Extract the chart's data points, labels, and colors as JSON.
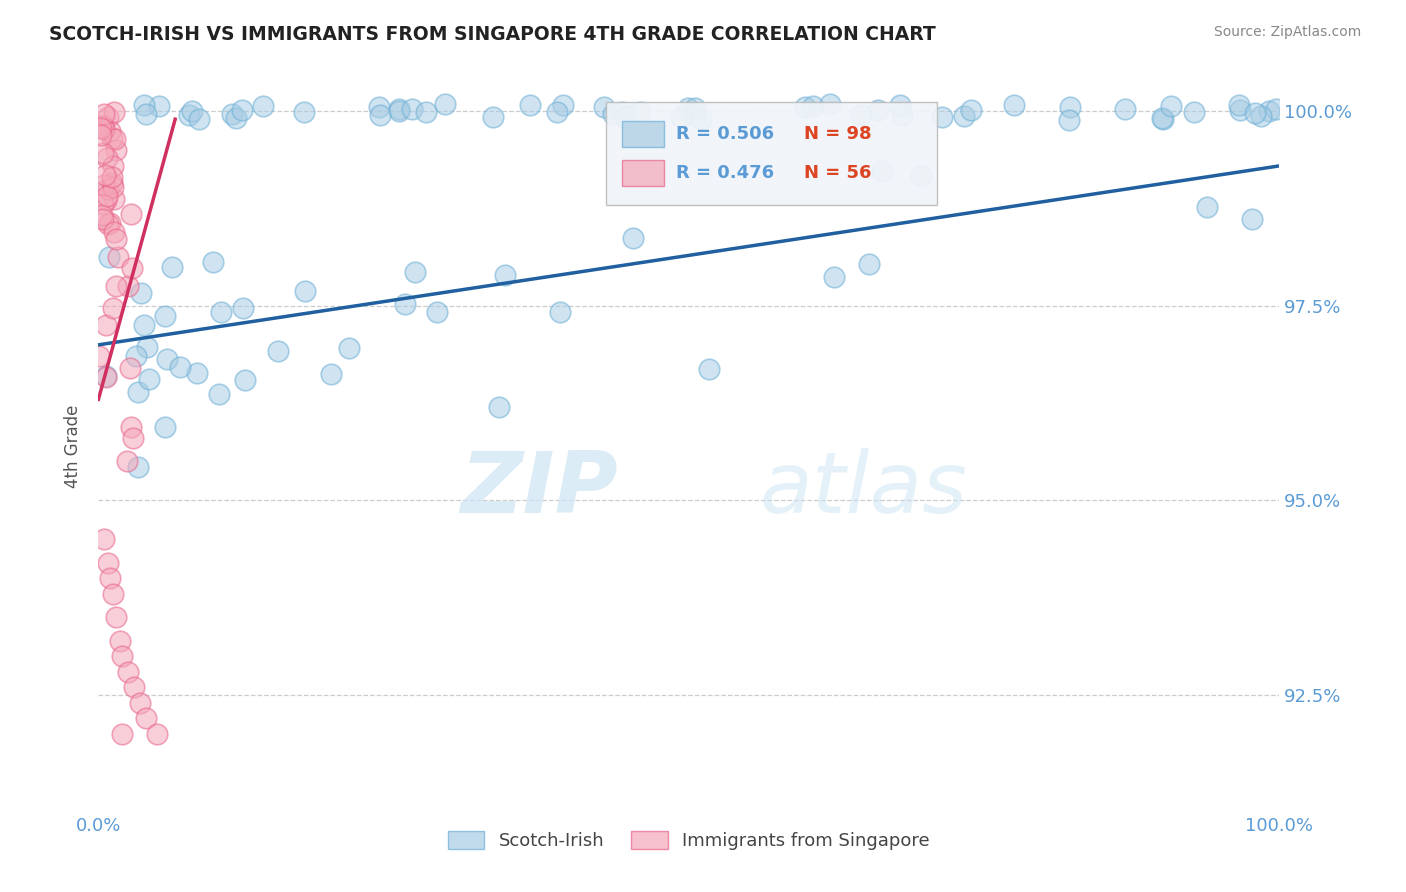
{
  "title": "SCOTCH-IRISH VS IMMIGRANTS FROM SINGAPORE 4TH GRADE CORRELATION CHART",
  "source_text": "Source: ZipAtlas.com",
  "ylabel": "4th Grade",
  "xlim": [
    0.0,
    1.0
  ],
  "ylim": [
    0.91,
    1.004
  ],
  "yticks": [
    0.925,
    0.95,
    0.975,
    1.0
  ],
  "ytick_labels": [
    "92.5%",
    "95.0%",
    "97.5%",
    "100.0%"
  ],
  "blue_color": "#a8cce4",
  "pink_color": "#f4a7b9",
  "blue_edge_color": "#6baed6",
  "pink_edge_color": "#e8658a",
  "blue_line_color": "#2060a0",
  "pink_line_color": "#d03060",
  "legend_R_blue": "R = 0.506",
  "legend_N_blue": "N = 98",
  "legend_R_pink": "R = 0.476",
  "legend_N_pink": "N = 56",
  "legend_label_blue": "Scotch-Irish",
  "legend_label_pink": "Immigrants from Singapore",
  "watermark_zip": "ZIP",
  "watermark_atlas": "atlas",
  "background_color": "#ffffff",
  "grid_color": "#cccccc",
  "label_color": "#5b9bd5",
  "title_color": "#222222"
}
